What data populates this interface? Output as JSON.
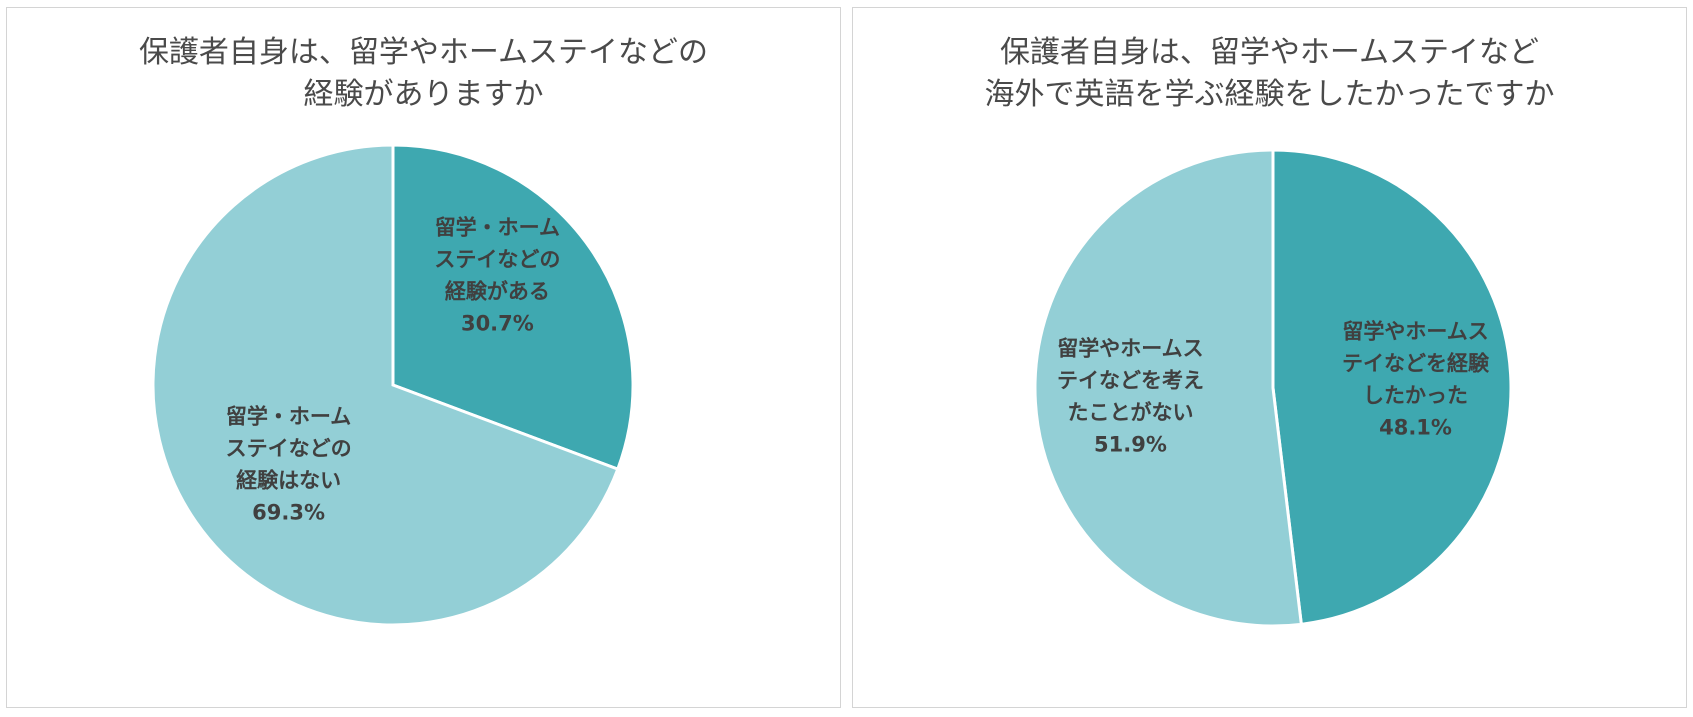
{
  "chart_data": [
    {
      "type": "pie",
      "title": "保護者自身は、留学やホームステイなどの経験がありますか",
      "title_lines": [
        "保護者自身は、留学やホームステイなどの",
        "経験がありますか"
      ],
      "slices": [
        {
          "label_lines": [
            "留学・ホーム",
            "ステイなどの",
            "経験がある"
          ],
          "value": 30.7,
          "value_label": "30.7%",
          "color": "#3ea8b0"
        },
        {
          "label_lines": [
            "留学・ホーム",
            "ステイなどの",
            "経験はない"
          ],
          "value": 69.3,
          "value_label": "69.3%",
          "color": "#93cfd6"
        }
      ]
    },
    {
      "type": "pie",
      "title": "保護者自身は、留学やホームステイなど海外で英語を学ぶ経験をしたかったですか",
      "title_lines": [
        "保護者自身は、留学やホームステイなど",
        "海外で英語を学ぶ経験をしたかったですか"
      ],
      "slices": [
        {
          "label_lines": [
            "留学やホームス",
            "テイなどを経験",
            "したかった"
          ],
          "value": 48.1,
          "value_label": "48.1%",
          "color": "#3ea8b0"
        },
        {
          "label_lines": [
            "留学やホームス",
            "テイなどを考え",
            "たことがない"
          ],
          "value": 51.9,
          "value_label": "51.9%",
          "color": "#93cfd6"
        }
      ]
    }
  ]
}
